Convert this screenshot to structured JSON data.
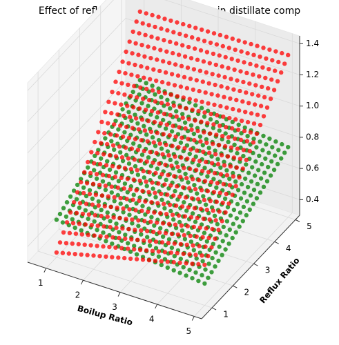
{
  "chart_data": {
    "type": "scatter3d",
    "title": "Effect of reflux ratio and boilup ratio in distillate comp",
    "xlabel": "Boilup Ratio",
    "ylabel": "Reflux Ratio",
    "zlabel": "",
    "xlim": [
      0.5,
      5.2
    ],
    "ylim": [
      0.5,
      5.2
    ],
    "zlim": [
      0.3,
      1.45
    ],
    "xticks": [
      "1",
      "2",
      "3",
      "4",
      "5"
    ],
    "yticks": [
      "1",
      "2",
      "3",
      "4",
      "5"
    ],
    "zticks": [
      "0.4",
      "0.6",
      "0.8",
      "1.0",
      "1.2",
      "1.4"
    ],
    "grid": true,
    "legend": "none",
    "series": [
      {
        "color": "#008000",
        "surface_corners": {
          "boilup_1_reflux_1": 0.54,
          "boilup_5_reflux_1": 0.44,
          "boilup_1_reflux_5": 0.87,
          "boilup_5_reflux_5": 0.75
        }
      },
      {
        "color": "#ff0000",
        "surface_corners": {
          "boilup_1_reflux_1": 0.33,
          "boilup_5_reflux_1": 0.56,
          "boilup_1_reflux_5": 1.31,
          "boilup_5_reflux_5": 1.34
        }
      }
    ]
  }
}
